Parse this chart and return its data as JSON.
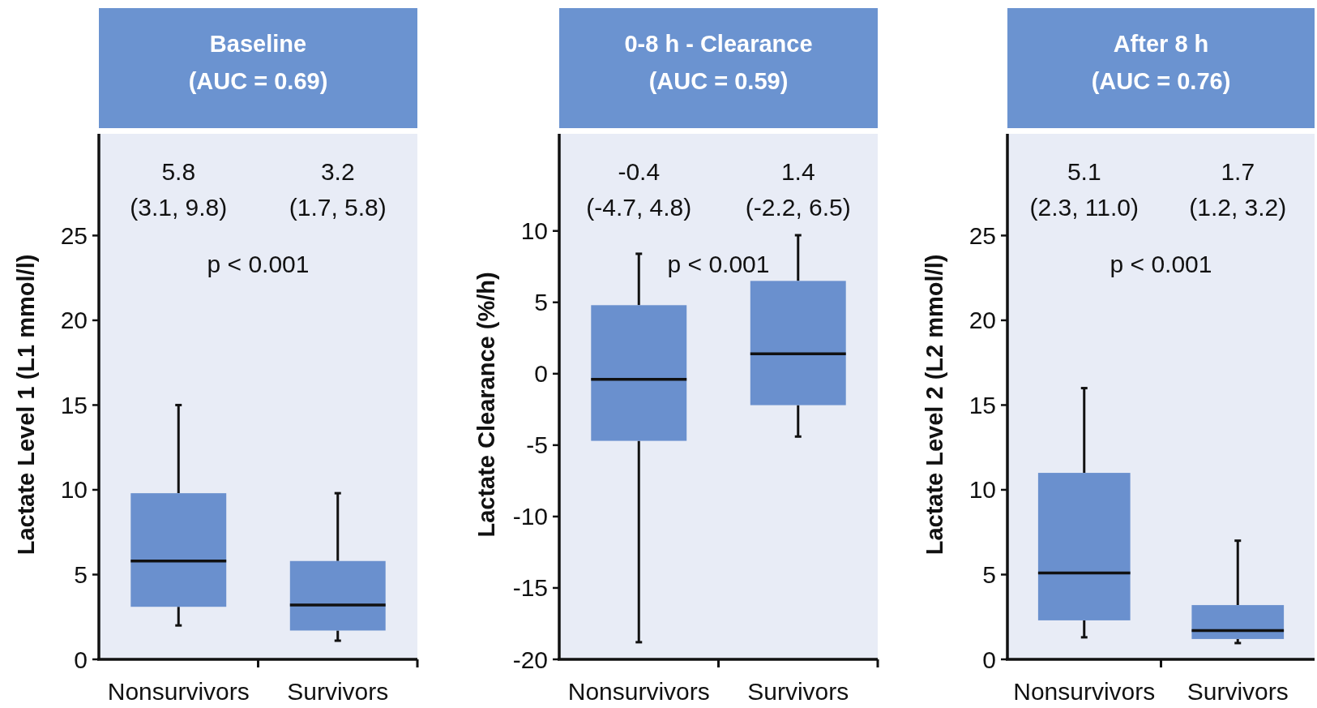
{
  "chart_data": [
    {
      "type": "box",
      "title": "Baseline",
      "subtitle": "(AUC = 0.69)",
      "ylabel": "Lactate Level 1 (L1 mmol/l)",
      "categories": [
        "Nonsurvivors",
        "Survivors"
      ],
      "ylim": [
        0,
        31
      ],
      "yticks": [
        0,
        5,
        10,
        15,
        20,
        25
      ],
      "annotations": [
        "5.8",
        "(3.1, 9.8)",
        "3.2",
        "(1.7, 5.8)",
        "p < 0.001"
      ],
      "series": [
        {
          "color": "#6a90ce",
          "boxes": [
            {
              "low": 2,
              "q1": 3.1,
              "median": 5.8,
              "q3": 9.8,
              "high": 15
            },
            {
              "low": 1.1,
              "q1": 1.7,
              "median": 3.2,
              "q3": 5.8,
              "high": 9.8
            }
          ]
        }
      ]
    },
    {
      "type": "box",
      "title": "0-8 h - Clearance",
      "subtitle": "(AUC = 0.59)",
      "ylabel": "Lactate Clearance (%/h)",
      "categories": [
        "Nonsurvivors",
        "Survivors"
      ],
      "ylim": [
        -20,
        16.8
      ],
      "yticks": [
        -20,
        -15,
        -10,
        -5,
        0,
        5,
        10
      ],
      "annotations": [
        "-0.4",
        "(-4.7, 4.8)",
        "1.4",
        "(-2.2, 6.5)",
        "p < 0.001"
      ],
      "series": [
        {
          "color": "#6a90ce",
          "boxes": [
            {
              "low": -18.8,
              "q1": -4.7,
              "median": -0.4,
              "q3": 4.8,
              "high": 8.4
            },
            {
              "low": -4.4,
              "q1": -2.2,
              "median": 1.4,
              "q3": 6.5,
              "high": 9.7
            }
          ]
        }
      ]
    },
    {
      "type": "box",
      "title": "After 8 h",
      "subtitle": "(AUC = 0.76)",
      "ylabel": "Lactate Level 2 (L2 mmol/l)",
      "categories": [
        "Nonsurvivors",
        "Survivors"
      ],
      "ylim": [
        0,
        31
      ],
      "yticks": [
        0,
        5,
        10,
        15,
        20,
        25
      ],
      "annotations": [
        "5.1",
        "(2.3, 11.0)",
        "1.7",
        "(1.2, 3.2)",
        "p < 0.001"
      ],
      "series": [
        {
          "color": "#6a90ce",
          "boxes": [
            {
              "low": 1.3,
              "q1": 2.3,
              "median": 5.1,
              "q3": 11.0,
              "high": 16
            },
            {
              "low": 0.96,
              "q1": 1.2,
              "median": 1.7,
              "q3": 3.2,
              "high": 7.0
            }
          ]
        }
      ]
    }
  ]
}
